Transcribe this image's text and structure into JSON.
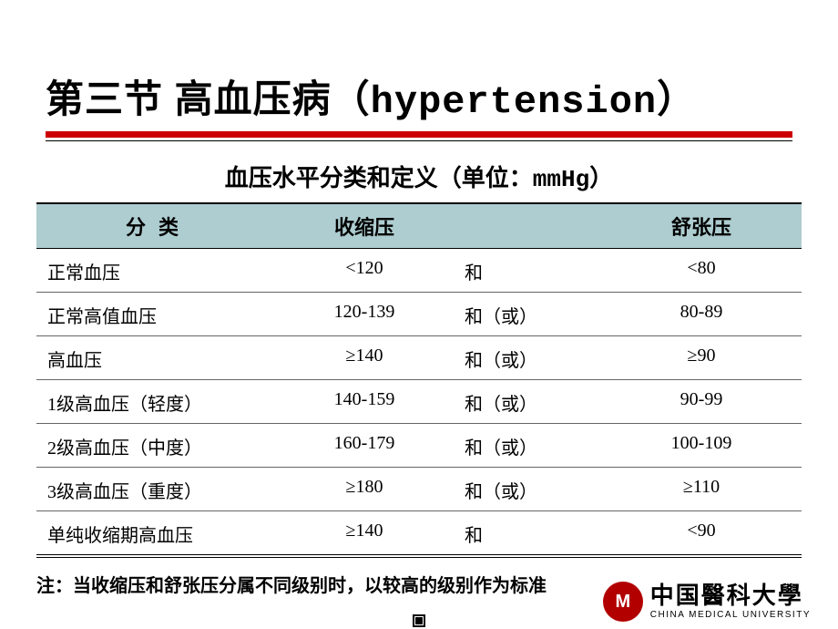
{
  "title": {
    "cn_prefix": "第三节 高血压病（",
    "en": "hypertension",
    "cn_suffix": "）"
  },
  "subtitle": {
    "prefix": "血压水平分类和定义（单位：",
    "unit": "mmHg",
    "suffix": "）"
  },
  "colors": {
    "underline": "#cc0000",
    "header_bg": "#aecdd0",
    "logo": "#b20000"
  },
  "table": {
    "headers": {
      "c1": "分类",
      "c2": "收缩压",
      "c3": "",
      "c4": "舒张压"
    },
    "rows": [
      {
        "c1": "正常血压",
        "c2": "<120",
        "c3": "和",
        "c4": "<80"
      },
      {
        "c1": "正常高值血压",
        "c2": "120-139",
        "c3": "和（或）",
        "c4": "80-89"
      },
      {
        "c1": "高血压",
        "c2": "≥140",
        "c3": "和（或）",
        "c4": "≥90"
      },
      {
        "c1": "1级高血压（轻度）",
        "c2": "140-159",
        "c3": "和（或）",
        "c4": "90-99"
      },
      {
        "c1": "2级高血压（中度）",
        "c2": "160-179",
        "c3": "和（或）",
        "c4": "100-109"
      },
      {
        "c1": "3级高血压（重度）",
        "c2": "≥180",
        "c3": "和（或）",
        "c4": "≥110"
      },
      {
        "c1": "单纯收缩期高血压",
        "c2": "≥140",
        "c3": "和",
        "c4": "<90"
      }
    ]
  },
  "note": "注：当收缩压和舒张压分属不同级别时，以较高的级别作为标准",
  "logo": {
    "badge": "M",
    "cn": "中国醫科大學",
    "en": "CHINA MEDICAL UNIVERSITY"
  }
}
